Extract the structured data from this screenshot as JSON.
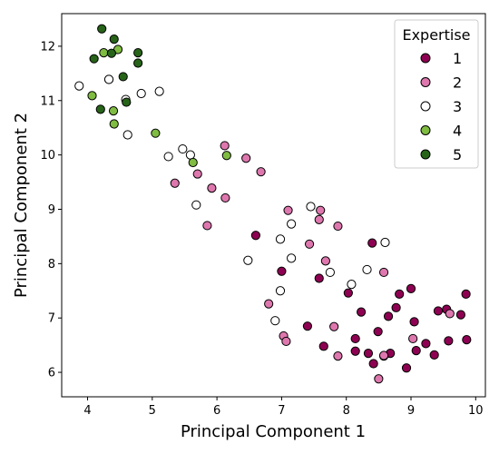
{
  "chart_data": {
    "type": "scatter",
    "xlabel": "Principal Component 1",
    "ylabel": "Principal Component 2",
    "xlim": [
      3.6,
      10.15
    ],
    "ylim": [
      5.55,
      12.6
    ],
    "xticks": [
      4,
      5,
      6,
      7,
      8,
      9,
      10
    ],
    "yticks": [
      6,
      7,
      8,
      9,
      10,
      11,
      12
    ],
    "grid": false,
    "legend": {
      "title": "Expertise",
      "position": "top-right"
    },
    "series": [
      {
        "name": "1",
        "color": "#8e0152",
        "points": [
          [
            6.6,
            8.52
          ],
          [
            7.0,
            7.86
          ],
          [
            7.58,
            7.73
          ],
          [
            8.4,
            8.38
          ],
          [
            8.03,
            7.46
          ],
          [
            8.23,
            7.11
          ],
          [
            8.65,
            7.03
          ],
          [
            8.77,
            7.19
          ],
          [
            8.82,
            7.44
          ],
          [
            9.0,
            7.54
          ],
          [
            9.05,
            6.93
          ],
          [
            9.42,
            7.13
          ],
          [
            9.55,
            7.16
          ],
          [
            9.77,
            7.06
          ],
          [
            9.85,
            7.44
          ],
          [
            7.4,
            6.85
          ],
          [
            7.65,
            6.48
          ],
          [
            8.14,
            6.62
          ],
          [
            8.14,
            6.39
          ],
          [
            8.34,
            6.35
          ],
          [
            8.42,
            6.16
          ],
          [
            8.49,
            6.75
          ],
          [
            8.58,
            6.3
          ],
          [
            8.68,
            6.35
          ],
          [
            8.93,
            6.08
          ],
          [
            9.08,
            6.4
          ],
          [
            9.23,
            6.53
          ],
          [
            9.36,
            6.32
          ],
          [
            9.58,
            6.58
          ],
          [
            9.86,
            6.6
          ]
        ]
      },
      {
        "name": "2",
        "color": "#de77ae",
        "points": [
          [
            6.12,
            10.17
          ],
          [
            6.45,
            9.94
          ],
          [
            6.68,
            9.69
          ],
          [
            5.7,
            9.65
          ],
          [
            5.35,
            9.48
          ],
          [
            5.92,
            9.39
          ],
          [
            6.13,
            9.21
          ],
          [
            5.85,
            8.7
          ],
          [
            7.1,
            8.98
          ],
          [
            7.6,
            8.98
          ],
          [
            7.58,
            8.81
          ],
          [
            7.87,
            8.69
          ],
          [
            7.43,
            8.36
          ],
          [
            7.68,
            8.05
          ],
          [
            6.8,
            7.26
          ],
          [
            7.03,
            6.67
          ],
          [
            7.07,
            6.57
          ],
          [
            7.81,
            6.84
          ],
          [
            7.87,
            6.3
          ],
          [
            8.5,
            5.88
          ],
          [
            8.58,
            6.31
          ],
          [
            8.58,
            7.84
          ],
          [
            9.03,
            6.62
          ],
          [
            9.6,
            7.08
          ]
        ]
      },
      {
        "name": "3",
        "color": "#ffffff",
        "points": [
          [
            3.87,
            11.27
          ],
          [
            4.33,
            11.39
          ],
          [
            4.33,
            11.39
          ],
          [
            4.59,
            11.02
          ],
          [
            4.83,
            11.13
          ],
          [
            5.11,
            11.17
          ],
          [
            4.62,
            10.37
          ],
          [
            5.25,
            9.97
          ],
          [
            5.47,
            10.11
          ],
          [
            5.59,
            10.0
          ],
          [
            5.68,
            9.08
          ],
          [
            7.45,
            9.05
          ],
          [
            7.15,
            8.73
          ],
          [
            6.98,
            8.45
          ],
          [
            7.15,
            8.1
          ],
          [
            6.48,
            8.06
          ],
          [
            7.75,
            7.84
          ],
          [
            8.32,
            7.89
          ],
          [
            8.08,
            7.62
          ],
          [
            8.6,
            8.39
          ],
          [
            6.98,
            7.5
          ],
          [
            6.9,
            6.95
          ]
        ]
      },
      {
        "name": "4",
        "color": "#7fbc41",
        "points": [
          [
            4.25,
            11.88
          ],
          [
            4.47,
            11.94
          ],
          [
            4.07,
            11.09
          ],
          [
            4.4,
            10.81
          ],
          [
            4.41,
            10.57
          ],
          [
            5.05,
            10.4
          ],
          [
            5.63,
            9.86
          ],
          [
            6.15,
            9.99
          ]
        ]
      },
      {
        "name": "5",
        "color": "#276419",
        "points": [
          [
            4.22,
            12.32
          ],
          [
            4.41,
            12.13
          ],
          [
            4.37,
            11.87
          ],
          [
            4.78,
            11.88
          ],
          [
            4.1,
            11.77
          ],
          [
            4.78,
            11.69
          ],
          [
            4.55,
            11.44
          ],
          [
            4.6,
            10.97
          ],
          [
            4.2,
            10.84
          ]
        ]
      }
    ]
  }
}
